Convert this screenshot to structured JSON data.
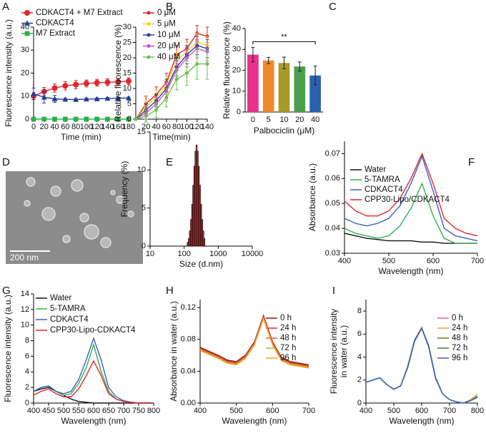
{
  "chart_data": [
    {
      "type": "line",
      "label": "A",
      "ylabel": "Fluorescence intensity (a.u.)",
      "xlabel": "Time (min)",
      "x": [
        0,
        20,
        40,
        60,
        80,
        100,
        120,
        140,
        160,
        180
      ],
      "xlim": [
        0,
        180
      ],
      "xticks": [
        0,
        20,
        40,
        60,
        80,
        100,
        120,
        140,
        160,
        180
      ],
      "ylim": [
        0,
        40
      ],
      "yticks": [
        0,
        10,
        20,
        30,
        40
      ],
      "series": [
        {
          "name": "CDKACT4 + M7 Extract",
          "color": "#e0262a",
          "marker": "circle",
          "values": [
            10,
            12,
            13.5,
            14.5,
            15,
            15.5,
            15.8,
            16,
            16.2,
            16.5
          ],
          "errors": [
            1.5,
            1.8,
            1.8,
            1.8,
            1.8,
            1.5,
            1.5,
            1.5,
            1.5,
            1.5
          ]
        },
        {
          "name": "CDKACT4",
          "color": "#1f3d99",
          "marker": "triangle",
          "values": [
            11,
            9.5,
            8.8,
            8.6,
            8.5,
            8.7,
            8.8,
            9,
            9.1,
            9.2
          ],
          "errors": [
            2.5,
            2.5,
            1.5,
            0.5,
            0.4,
            0.4,
            0.4,
            0.4,
            0.4,
            0.4
          ]
        },
        {
          "name": "M7 Extract",
          "color": "#2fb04a",
          "marker": "square",
          "values": [
            0,
            0,
            0,
            0,
            0,
            0,
            0,
            0,
            0,
            0
          ],
          "errors": [
            0.3,
            0.3,
            0.3,
            0.3,
            0.3,
            0.3,
            0.3,
            0.3,
            0.3,
            0.3
          ]
        }
      ]
    },
    {
      "type": "line",
      "label": "B",
      "ylabel": "Relative fluorescence (%)",
      "xlabel": "Time(min)",
      "x": [
        0,
        20,
        40,
        60,
        80,
        100,
        120,
        140
      ],
      "xlim": [
        0,
        140
      ],
      "xticks": [
        20,
        40,
        60,
        80,
        100,
        120,
        140
      ],
      "ylim": [
        0,
        30
      ],
      "yticks": [
        0,
        5,
        10,
        15,
        20,
        25,
        30
      ],
      "series": [
        {
          "name": "0  μM",
          "color": "#e0262a",
          "marker": "circle",
          "values": [
            0,
            5,
            8,
            12,
            21,
            23,
            28,
            27
          ],
          "errors": [
            0,
            2.5,
            2.5,
            3,
            3,
            3,
            2.5,
            3
          ]
        },
        {
          "name": "5  μM",
          "color": "#e8d81e",
          "marker": "circle",
          "values": [
            0,
            4,
            7,
            11,
            19,
            22,
            25,
            24
          ],
          "errors": [
            0,
            2,
            2.5,
            3,
            3,
            3,
            3,
            3
          ]
        },
        {
          "name": "10  μM",
          "color": "#2a3fa0",
          "marker": "circle",
          "values": [
            0,
            3,
            6,
            10,
            17,
            21,
            24,
            23
          ],
          "errors": [
            0,
            2,
            2,
            3,
            3,
            3,
            3,
            3
          ]
        },
        {
          "name": "20  μM",
          "color": "#d04ed0",
          "marker": "circle",
          "values": [
            0,
            2,
            5,
            9,
            16,
            20,
            23,
            22
          ],
          "errors": [
            0,
            2,
            2,
            3,
            3,
            3,
            3,
            3
          ]
        },
        {
          "name": "40  μM",
          "color": "#6cc04a",
          "marker": "circle",
          "values": [
            0,
            1,
            3,
            7,
            13,
            15,
            18,
            18
          ],
          "errors": [
            0,
            2,
            2.5,
            3,
            3.5,
            4,
            5,
            5
          ]
        }
      ]
    },
    {
      "type": "bar",
      "label": "C",
      "ylabel": "Relative fluorescence (%)",
      "xlabel": "Palbociclin (μM)",
      "annotation": "**",
      "categories": [
        "0",
        "5",
        "10",
        "20",
        "40"
      ],
      "values": [
        27.5,
        24.7,
        23.5,
        21.8,
        17.5
      ],
      "errors": [
        3.5,
        1.5,
        2.8,
        2.2,
        4.5
      ],
      "colors": [
        "#e8318a",
        "#f08a2a",
        "#a89a2a",
        "#4aa04a",
        "#2a62b0"
      ],
      "ylim": [
        0,
        40
      ],
      "yticks": [
        0,
        10,
        20,
        30,
        40
      ]
    },
    {
      "type": "image",
      "label": "D",
      "scale_bar": "200 nm"
    },
    {
      "type": "histogram",
      "label": "E",
      "ylabel": "Frequency (%)",
      "xlabel": "Size (d.nm)",
      "xscale": "log",
      "bins": [
        122,
        132,
        142,
        153,
        165,
        178,
        192,
        207,
        223,
        241,
        260,
        280,
        302,
        326,
        351,
        379,
        408
      ],
      "values": [
        0.5,
        1,
        2,
        3.5,
        5.5,
        8,
        10.5,
        12.5,
        13.3,
        12.5,
        10.5,
        8,
        5.5,
        3.5,
        2,
        1
      ],
      "color": "#c0262a",
      "xlim": [
        10,
        10000
      ],
      "xticks": [
        10,
        100,
        1000,
        10000
      ],
      "ylim": [
        0,
        15
      ],
      "yticks": [
        0,
        5,
        10,
        15
      ]
    },
    {
      "type": "line",
      "label": "F",
      "ylabel": "Absorbance (a.u.)",
      "xlabel": "Wavelength (nm)",
      "x": [
        400,
        425,
        450,
        475,
        500,
        525,
        550,
        575,
        600,
        625,
        650,
        675,
        700
      ],
      "xlim": [
        400,
        700
      ],
      "xticks": [
        400,
        500,
        600,
        700
      ],
      "ylim": [
        0.03,
        0.075
      ],
      "yticks": [
        0.03,
        0.04,
        0.05,
        0.06,
        0.07
      ],
      "series": [
        {
          "name": "Water",
          "color": "#111111",
          "values": [
            0.038,
            0.037,
            0.036,
            0.0355,
            0.035,
            0.035,
            0.035,
            0.0345,
            0.0345,
            0.034,
            0.034,
            0.034,
            0.034
          ]
        },
        {
          "name": "5-TAMRA",
          "color": "#2fb04a",
          "values": [
            0.04,
            0.038,
            0.037,
            0.036,
            0.037,
            0.041,
            0.048,
            0.058,
            0.045,
            0.036,
            0.034,
            0.034,
            0.034
          ]
        },
        {
          "name": "CDKACT4",
          "color": "#3a5fc8",
          "values": [
            0.044,
            0.042,
            0.041,
            0.042,
            0.044,
            0.049,
            0.058,
            0.069,
            0.055,
            0.04,
            0.037,
            0.036,
            0.035
          ]
        },
        {
          "name": "CPP30-Lipo/CDKACT4",
          "color": "#e0262a",
          "values": [
            0.051,
            0.047,
            0.045,
            0.045,
            0.047,
            0.052,
            0.06,
            0.07,
            0.058,
            0.044,
            0.04,
            0.038,
            0.037
          ]
        }
      ]
    },
    {
      "type": "line",
      "label": "G",
      "ylabel": "Fluorescence intensity (a.u.)",
      "xlabel": "Wavelength (nm)",
      "x": [
        400,
        425,
        450,
        475,
        500,
        525,
        550,
        575,
        600,
        625,
        650,
        675,
        700,
        725,
        750,
        775,
        800
      ],
      "xlim": [
        400,
        800
      ],
      "xticks": [
        400,
        450,
        500,
        550,
        600,
        650,
        700,
        750,
        800
      ],
      "ylim": [
        0,
        14
      ],
      "yticks": [
        0,
        2,
        4,
        6,
        8,
        10,
        12,
        14
      ],
      "series": [
        {
          "name": "Water",
          "color": "#111111",
          "values": [
            1.5,
            1.8,
            2,
            1.5,
            1,
            0.5,
            0.2,
            0.1,
            0,
            0,
            0,
            0,
            0,
            0,
            0,
            0,
            0
          ]
        },
        {
          "name": "5-TAMRA",
          "color": "#2fb04a",
          "values": [
            1.5,
            2,
            2.2,
            1.5,
            1,
            1.2,
            2.5,
            4.5,
            7.5,
            4,
            1.5,
            0.5,
            0.2,
            0.1,
            0,
            0,
            0
          ]
        },
        {
          "name": "CDKACT4",
          "color": "#3a5fc8",
          "values": [
            1.5,
            2,
            2.2,
            1.5,
            1.2,
            1.5,
            3,
            5.5,
            8.3,
            5.5,
            2,
            0.8,
            0.3,
            0.1,
            0,
            0,
            0
          ]
        },
        {
          "name": "CPP30-Lipo-CDKACT4",
          "color": "#e0262a",
          "values": [
            1,
            1.5,
            1.8,
            1.2,
            0.8,
            0.8,
            1.8,
            3.5,
            5.4,
            3.5,
            1.2,
            0.5,
            0.2,
            0.1,
            0,
            0,
            0
          ]
        }
      ]
    },
    {
      "type": "line",
      "label": "H",
      "ylabel": "Absorbance in water (a.u.)",
      "xlabel": "Wavelength (nm)",
      "x": [
        400,
        425,
        450,
        475,
        500,
        525,
        550,
        575,
        600,
        625,
        650,
        675,
        700
      ],
      "xlim": [
        400,
        700
      ],
      "xticks": [
        400,
        500,
        600,
        700
      ],
      "ylim": [
        0,
        0.13
      ],
      "yticks": [
        {
          "value": 0,
          "label": "0.00"
        },
        0.04,
        0.08,
        0.12
      ],
      "series": [
        {
          "name": "0  h",
          "color": "#8b1a1a",
          "values": [
            0.07,
            0.065,
            0.06,
            0.054,
            0.052,
            0.06,
            0.077,
            0.11,
            0.077,
            0.057,
            0.052,
            0.05,
            0.048
          ]
        },
        {
          "name": "24 h",
          "color": "#e0262a",
          "values": [
            0.069,
            0.064,
            0.059,
            0.053,
            0.051,
            0.059,
            0.076,
            0.109,
            0.076,
            0.056,
            0.051,
            0.049,
            0.047
          ]
        },
        {
          "name": "48 h",
          "color": "#f05a28",
          "values": [
            0.068,
            0.063,
            0.058,
            0.052,
            0.05,
            0.058,
            0.075,
            0.108,
            0.075,
            0.055,
            0.05,
            0.048,
            0.046
          ]
        },
        {
          "name": "72 h",
          "color": "#a8b428",
          "values": [
            0.067,
            0.062,
            0.057,
            0.051,
            0.049,
            0.057,
            0.074,
            0.107,
            0.074,
            0.054,
            0.049,
            0.047,
            0.045
          ]
        },
        {
          "name": "96 h",
          "color": "#f0a030",
          "values": [
            0.066,
            0.061,
            0.056,
            0.05,
            0.048,
            0.056,
            0.073,
            0.106,
            0.073,
            0.053,
            0.048,
            0.046,
            0.044
          ]
        }
      ]
    },
    {
      "type": "line",
      "label": "I",
      "ylabel": [
        "Fluorescence intensity",
        "in water (a.u.)"
      ],
      "xlabel": "Wavelength (nm)",
      "x": [
        400,
        425,
        450,
        475,
        500,
        525,
        550,
        575,
        600,
        625,
        650,
        675,
        700,
        725,
        750,
        775,
        800
      ],
      "xlim": [
        400,
        800
      ],
      "xticks": [
        400,
        500,
        600,
        700,
        800
      ],
      "ylim": [
        0,
        9
      ],
      "yticks": [
        0,
        2,
        4,
        6,
        8
      ],
      "series": [
        {
          "name": "0  h",
          "color": "#e060c0",
          "values": [
            1.8,
            2,
            2.2,
            1.6,
            1.2,
            1.5,
            3.2,
            5.5,
            6.6,
            5,
            2.2,
            0.8,
            0.3,
            0.1,
            0,
            0.2,
            0.6
          ]
        },
        {
          "name": "24 h",
          "color": "#f0a030",
          "values": [
            1.8,
            2,
            2.2,
            1.6,
            1.2,
            1.5,
            3.2,
            5.5,
            6.6,
            5,
            2.2,
            0.8,
            0.3,
            0.1,
            0,
            0.3,
            0.8
          ]
        },
        {
          "name": "48 h",
          "color": "#7a7a20",
          "values": [
            1.8,
            2,
            2.2,
            1.6,
            1.2,
            1.5,
            3.1,
            5.4,
            6.5,
            4.9,
            2.2,
            0.8,
            0.3,
            0.1,
            0,
            0.2,
            0.5
          ]
        },
        {
          "name": "72 h",
          "color": "#2a8a3a",
          "values": [
            1.8,
            2,
            2.2,
            1.6,
            1.2,
            1.5,
            3.1,
            5.4,
            6.5,
            4.9,
            2.1,
            0.8,
            0.3,
            0.1,
            0,
            0.2,
            0.5
          ]
        },
        {
          "name": "96 h",
          "color": "#3a5fc8",
          "values": [
            1.8,
            2,
            2.2,
            1.6,
            1.2,
            1.5,
            3.2,
            5.5,
            6.5,
            5,
            2.2,
            0.8,
            0.3,
            0.1,
            0,
            0.2,
            0.6
          ]
        }
      ]
    }
  ]
}
